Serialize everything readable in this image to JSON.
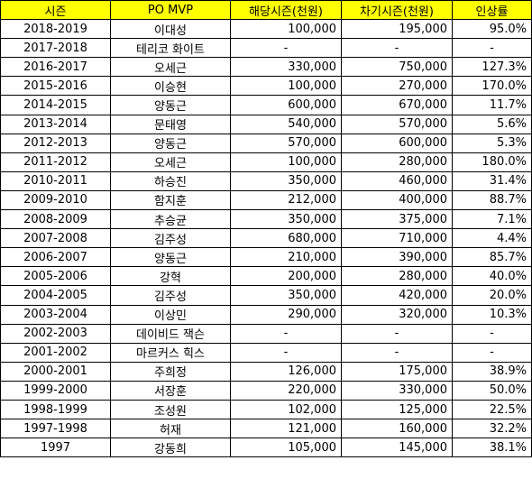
{
  "headers": [
    "시즌",
    "PO MVP",
    "해당시즌(천원)",
    "차기시즌(천원)",
    "인상률"
  ],
  "header_color": "#ffff00",
  "rows": [
    {
      "season": "2018-2019",
      "mvp": "이대성",
      "current": "100,000",
      "next": "195,000",
      "raise": "95.0%"
    },
    {
      "season": "2017-2018",
      "mvp": "테리코 화이트",
      "current": "-",
      "next": "-",
      "raise": "-"
    },
    {
      "season": "2016-2017",
      "mvp": "오세근",
      "current": "330,000",
      "next": "750,000",
      "raise": "127.3%"
    },
    {
      "season": "2015-2016",
      "mvp": "이승현",
      "current": "100,000",
      "next": "270,000",
      "raise": "170.0%"
    },
    {
      "season": "2014-2015",
      "mvp": "양동근",
      "current": "600,000",
      "next": "670,000",
      "raise": "11.7%"
    },
    {
      "season": "2013-2014",
      "mvp": "문태영",
      "current": "540,000",
      "next": "570,000",
      "raise": "5.6%"
    },
    {
      "season": "2012-2013",
      "mvp": "양동근",
      "current": "570,000",
      "next": "600,000",
      "raise": "5.3%"
    },
    {
      "season": "2011-2012",
      "mvp": "오세근",
      "current": "100,000",
      "next": "280,000",
      "raise": "180.0%"
    },
    {
      "season": "2010-2011",
      "mvp": "하승진",
      "current": "350,000",
      "next": "460,000",
      "raise": "31.4%"
    },
    {
      "season": "2009-2010",
      "mvp": "함지훈",
      "current": "212,000",
      "next": "400,000",
      "raise": "88.7%"
    },
    {
      "season": "2008-2009",
      "mvp": "추승균",
      "current": "350,000",
      "next": "375,000",
      "raise": "7.1%"
    },
    {
      "season": "2007-2008",
      "mvp": "김주성",
      "current": "680,000",
      "next": "710,000",
      "raise": "4.4%"
    },
    {
      "season": "2006-2007",
      "mvp": "양동근",
      "current": "210,000",
      "next": "390,000",
      "raise": "85.7%"
    },
    {
      "season": "2005-2006",
      "mvp": "강혁",
      "current": "200,000",
      "next": "280,000",
      "raise": "40.0%"
    },
    {
      "season": "2004-2005",
      "mvp": "김주성",
      "current": "350,000",
      "next": "420,000",
      "raise": "20.0%"
    },
    {
      "season": "2003-2004",
      "mvp": "이상민",
      "current": "290,000",
      "next": "320,000",
      "raise": "10.3%"
    },
    {
      "season": "2002-2003",
      "mvp": "데이비드 잭슨",
      "current": "-",
      "next": "-",
      "raise": "-"
    },
    {
      "season": "2001-2002",
      "mvp": "마르커스 힉스",
      "current": "-",
      "next": "-",
      "raise": "-"
    },
    {
      "season": "2000-2001",
      "mvp": "주희정",
      "current": "126,000",
      "next": "175,000",
      "raise": "38.9%"
    },
    {
      "season": "1999-2000",
      "mvp": "서장훈",
      "current": "220,000",
      "next": "330,000",
      "raise": "50.0%"
    },
    {
      "season": "1998-1999",
      "mvp": "조성원",
      "current": "102,000",
      "next": "125,000",
      "raise": "22.5%"
    },
    {
      "season": "1997-1998",
      "mvp": "허재",
      "current": "121,000",
      "next": "160,000",
      "raise": "32.2%"
    },
    {
      "season": "1997",
      "mvp": "강동희",
      "current": "105,000",
      "next": "145,000",
      "raise": "38.1%"
    }
  ]
}
